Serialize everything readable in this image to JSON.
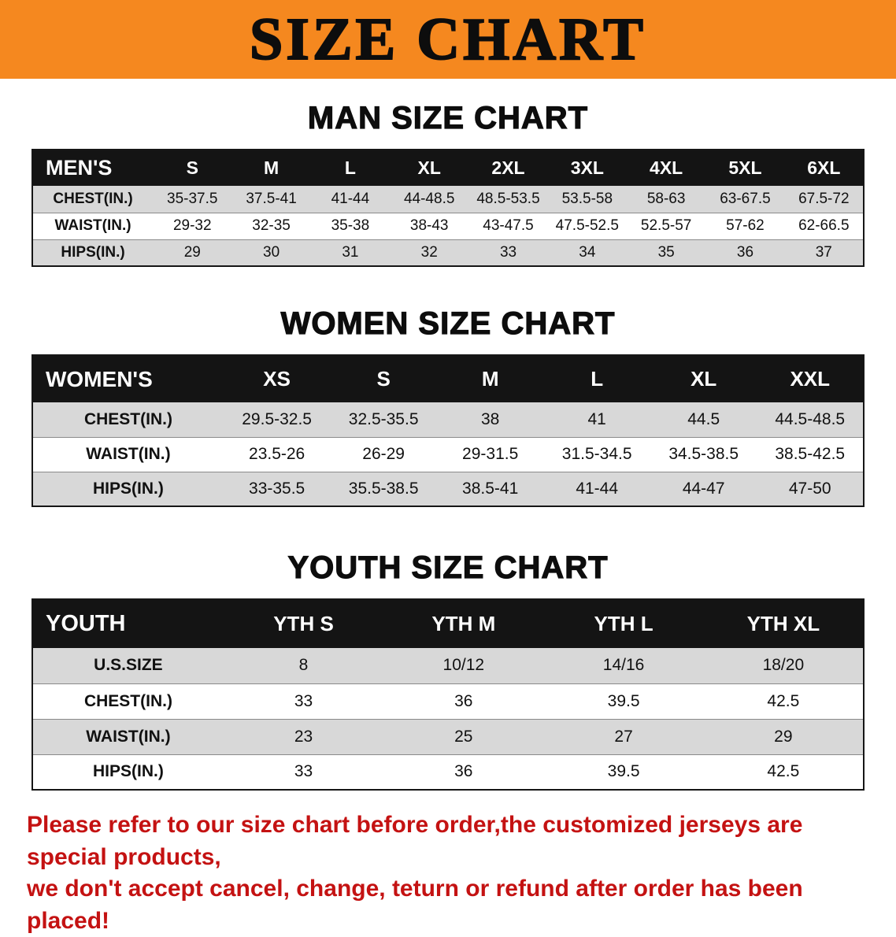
{
  "colors": {
    "banner_orange": "#f5881f",
    "table_header_black": "#141414",
    "row_shade_gray": "#d8d8d8",
    "footer_red": "#c41212"
  },
  "banner": {
    "title": "SIZE CHART"
  },
  "men": {
    "heading": "MAN SIZE CHART",
    "table": {
      "header": [
        "MEN'S",
        "S",
        "M",
        "L",
        "XL",
        "2XL",
        "3XL",
        "4XL",
        "5XL",
        "6XL"
      ],
      "rows": [
        {
          "label": "CHEST(IN.)",
          "cells": [
            "35-37.5",
            "37.5-41",
            "41-44",
            "44-48.5",
            "48.5-53.5",
            "53.5-58",
            "58-63",
            "63-67.5",
            "67.5-72"
          ]
        },
        {
          "label": "WAIST(IN.)",
          "cells": [
            "29-32",
            "32-35",
            "35-38",
            "38-43",
            "43-47.5",
            "47.5-52.5",
            "52.5-57",
            "57-62",
            "62-66.5"
          ]
        },
        {
          "label": "HIPS(IN.)",
          "cells": [
            "29",
            "30",
            "31",
            "32",
            "33",
            "34",
            "35",
            "36",
            "37"
          ]
        }
      ]
    }
  },
  "women": {
    "heading": "WOMEN SIZE CHART",
    "table": {
      "header": [
        "WOMEN'S",
        "XS",
        "S",
        "M",
        "L",
        "XL",
        "XXL"
      ],
      "rows": [
        {
          "label": "CHEST(IN.)",
          "cells": [
            "29.5-32.5",
            "32.5-35.5",
            "38",
            "41",
            "44.5",
            "44.5-48.5"
          ]
        },
        {
          "label": "WAIST(IN.)",
          "cells": [
            "23.5-26",
            "26-29",
            "29-31.5",
            "31.5-34.5",
            "34.5-38.5",
            "38.5-42.5"
          ]
        },
        {
          "label": "HIPS(IN.)",
          "cells": [
            "33-35.5",
            "35.5-38.5",
            "38.5-41",
            "41-44",
            "44-47",
            "47-50"
          ]
        }
      ]
    }
  },
  "youth": {
    "heading": "YOUTH SIZE CHART",
    "table": {
      "header": [
        "YOUTH",
        "YTH S",
        "YTH M",
        "YTH L",
        "YTH XL"
      ],
      "rows": [
        {
          "label": "U.S.SIZE",
          "cells": [
            "8",
            "10/12",
            "14/16",
            "18/20"
          ]
        },
        {
          "label": "CHEST(IN.)",
          "cells": [
            "33",
            "36",
            "39.5",
            "42.5"
          ]
        },
        {
          "label": "WAIST(IN.)",
          "cells": [
            "23",
            "25",
            "27",
            "29"
          ]
        },
        {
          "label": "HIPS(IN.)",
          "cells": [
            "33",
            "36",
            "39.5",
            "42.5"
          ]
        }
      ]
    }
  },
  "footer": {
    "line1": "Please refer to our size chart before order,the customized jerseys are special products,",
    "line2": "we don't accept cancel, change, teturn or refund after order has been placed!"
  }
}
